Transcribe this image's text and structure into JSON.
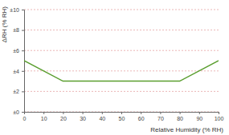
{
  "chart_data": {
    "type": "line",
    "x_label": "Relative Humidity (% RH)",
    "y_label": "ΔRH (% RH)",
    "x": [
      0,
      20,
      80,
      100
    ],
    "values": [
      5,
      3,
      3,
      5
    ],
    "color": "#5a9e2f",
    "xlim": [
      0,
      100
    ],
    "xticks": [
      0,
      10,
      20,
      30,
      40,
      50,
      60,
      70,
      80,
      90,
      100
    ],
    "ylim": [
      0,
      10
    ],
    "yticks": [
      {
        "value": 0,
        "label": "±0"
      },
      {
        "value": 2,
        "label": "±2"
      },
      {
        "value": 4,
        "label": "±4"
      },
      {
        "value": 6,
        "label": "±6"
      },
      {
        "value": 8,
        "label": "±8"
      },
      {
        "value": 10,
        "label": "±10"
      }
    ],
    "grid": true
  }
}
